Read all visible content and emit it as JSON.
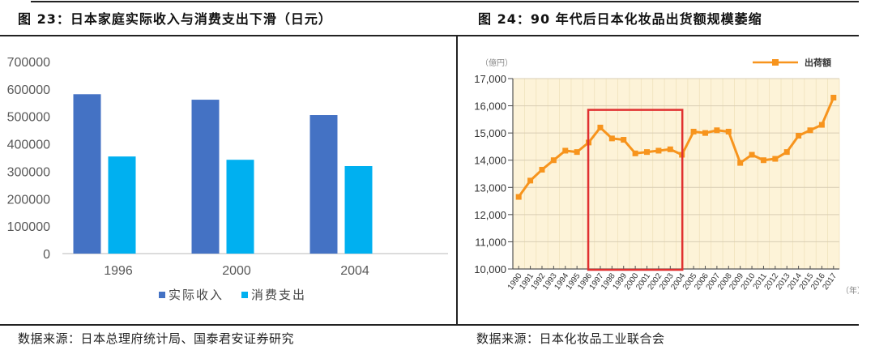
{
  "figures": [
    {
      "title": "图 23：日本家庭实际收入与消费支出下滑（日元）",
      "source": "数据来源：日本总理府统计局、国泰君安证券研究"
    },
    {
      "title": "图 24：90 年代后日本化妆品出货额规模萎缩",
      "source": "数据来源：日本化妆品工业联合会"
    }
  ],
  "chart_data": [
    {
      "type": "bar",
      "title": "日本家庭实际收入与消费支出下滑（日元）",
      "categories": [
        "1996",
        "2000",
        "2004"
      ],
      "series": [
        {
          "name": "实际收入",
          "color": "#4472C4",
          "values": [
            581000,
            561000,
            505000
          ]
        },
        {
          "name": "消费支出",
          "color": "#00B0F0",
          "values": [
            354000,
            342000,
            319000
          ]
        }
      ],
      "yticks": [
        "0",
        "100000",
        "200000",
        "300000",
        "400000",
        "500000",
        "600000",
        "700000"
      ],
      "ylim": [
        0,
        700000
      ],
      "xlabel": "",
      "ylabel": "",
      "grid": false,
      "legend_position": "bottom"
    },
    {
      "type": "line",
      "title": "90 年代后日本化妆品出货额规模萎缩",
      "unit_label": "（億円）",
      "xlabel": "（年）",
      "x": [
        "1990",
        "1991",
        "1992",
        "1993",
        "1994",
        "1995",
        "1996",
        "1997",
        "1998",
        "1999",
        "2000",
        "2001",
        "2002",
        "2003",
        "2004",
        "2005",
        "2006",
        "2007",
        "2008",
        "2009",
        "2010",
        "2011",
        "2012",
        "2013",
        "2014",
        "2015",
        "2016",
        "2017"
      ],
      "series": [
        {
          "name": "出荷額",
          "color": "#F7941D",
          "values": [
            12650,
            13250,
            13650,
            14000,
            14350,
            14300,
            14650,
            15200,
            14800,
            14750,
            14250,
            14300,
            14350,
            14400,
            14200,
            15050,
            15000,
            15100,
            15050,
            13900,
            14200,
            14000,
            14050,
            14300,
            14900,
            15100,
            15300,
            16300
          ]
        }
      ],
      "yticks": [
        "10,000",
        "11,000",
        "12,000",
        "13,000",
        "14,000",
        "15,000",
        "16,000",
        "17,000"
      ],
      "ylim": [
        10000,
        17000
      ],
      "grid": true,
      "plot_background": "#FDF3D8",
      "legend_position": "top-right",
      "annotation": {
        "type": "highlight-box",
        "color": "#E03030",
        "x_from": "1996",
        "x_to": "2004",
        "y_top": 15850
      }
    }
  ]
}
